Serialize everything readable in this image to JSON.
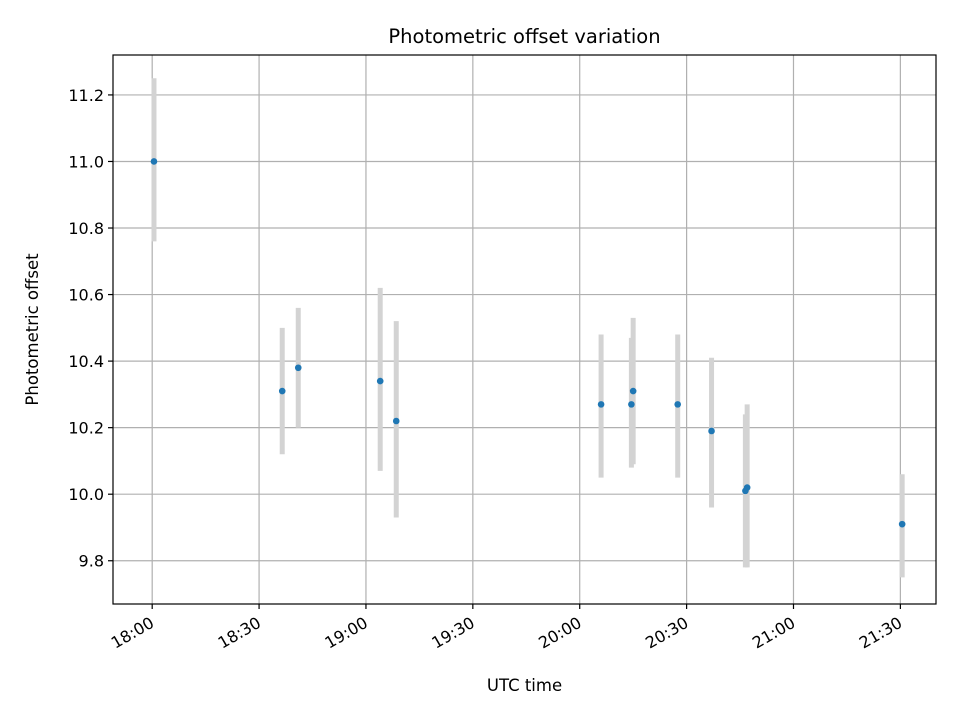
{
  "chart_data": {
    "type": "scatter",
    "title": "Photometric offset variation",
    "xlabel": "UTC time",
    "ylabel": "Photometric offset",
    "grid": true,
    "xlim": [
      "17:49",
      "21:40"
    ],
    "ylim": [
      9.67,
      11.32
    ],
    "xticks": [
      "18:00",
      "18:30",
      "19:00",
      "19:30",
      "20:00",
      "20:30",
      "21:00",
      "21:30"
    ],
    "yticks": [
      9.8,
      10.0,
      10.2,
      10.4,
      10.6,
      10.8,
      11.0,
      11.2
    ],
    "point_color": "#1f77b4",
    "errorbar_color": "#d3d3d3",
    "points": [
      {
        "time": "18:00:30",
        "value": 11.0,
        "low": 10.76,
        "high": 11.25
      },
      {
        "time": "18:36:30",
        "value": 10.31,
        "low": 10.12,
        "high": 10.5
      },
      {
        "time": "18:41:00",
        "value": 10.38,
        "low": 10.2,
        "high": 10.56
      },
      {
        "time": "19:04:00",
        "value": 10.34,
        "low": 10.07,
        "high": 10.62
      },
      {
        "time": "19:08:30",
        "value": 10.22,
        "low": 9.93,
        "high": 10.52
      },
      {
        "time": "20:06:00",
        "value": 10.27,
        "low": 10.05,
        "high": 10.48
      },
      {
        "time": "20:14:30",
        "value": 10.27,
        "low": 10.08,
        "high": 10.47
      },
      {
        "time": "20:15:00",
        "value": 10.31,
        "low": 10.09,
        "high": 10.53
      },
      {
        "time": "20:27:30",
        "value": 10.27,
        "low": 10.05,
        "high": 10.48
      },
      {
        "time": "20:37:00",
        "value": 10.19,
        "low": 9.96,
        "high": 10.41
      },
      {
        "time": "20:46:30",
        "value": 10.01,
        "low": 9.78,
        "high": 10.24
      },
      {
        "time": "20:47:00",
        "value": 10.02,
        "low": 9.78,
        "high": 10.27
      },
      {
        "time": "21:30:30",
        "value": 9.91,
        "low": 9.75,
        "high": 10.06
      }
    ]
  }
}
